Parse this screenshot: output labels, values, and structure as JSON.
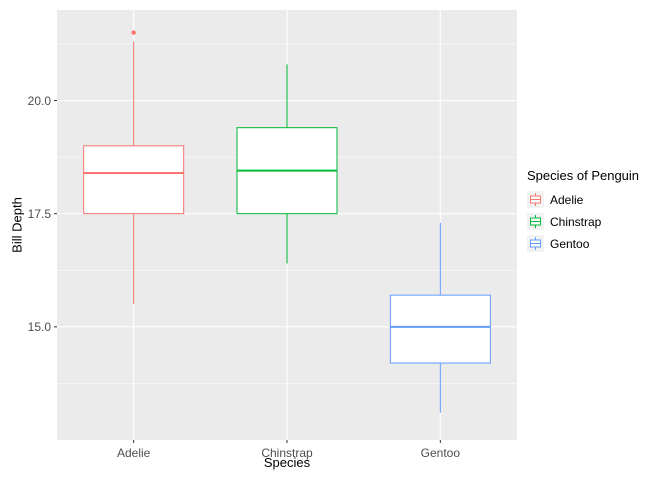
{
  "chart_data": {
    "type": "boxplot",
    "title": "",
    "xlabel": "Species",
    "ylabel": "Bill Depth",
    "legend_title": "Species of Penguin",
    "legend_position": "right",
    "grid": true,
    "categories": [
      "Adelie",
      "Chinstrap",
      "Gentoo"
    ],
    "y_major_ticks": [
      15.0,
      17.5,
      20.0
    ],
    "y_tick_labels": [
      "15.0",
      "17.5",
      "20.0"
    ],
    "y_minor_ticks": [
      13.75,
      16.25,
      18.75,
      21.25
    ],
    "ylim": [
      12.5,
      22.0
    ],
    "series": [
      {
        "name": "Adelie",
        "color": "#F8766D",
        "whisker_low": 15.5,
        "q1": 17.5,
        "median": 18.4,
        "q3": 19.0,
        "whisker_high": 21.3,
        "outliers": [
          21.5
        ]
      },
      {
        "name": "Chinstrap",
        "color": "#00BA38",
        "whisker_low": 16.4,
        "q1": 17.5,
        "median": 18.45,
        "q3": 19.4,
        "whisker_high": 20.8,
        "outliers": []
      },
      {
        "name": "Gentoo",
        "color": "#619CFF",
        "whisker_low": 13.1,
        "q1": 14.2,
        "median": 15.0,
        "q3": 15.7,
        "whisker_high": 17.3,
        "outliers": []
      }
    ],
    "style": {
      "panel_bg": "#EBEBEB",
      "grid_major": "#FFFFFF",
      "grid_minor": "#FFFFFF",
      "tick_color": "#333333",
      "tick_label_color": "#4D4D4D",
      "axis_title_color": "#000000",
      "legend_key_bg": "#F2F2F2",
      "box_fill": "#FFFFFF"
    }
  }
}
